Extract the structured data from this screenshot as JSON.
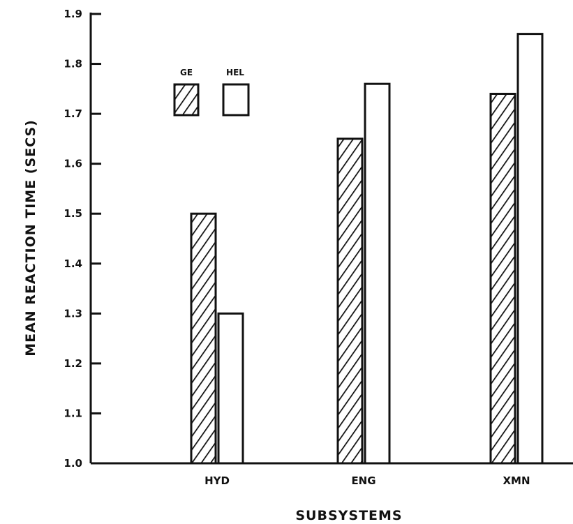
{
  "chart_data": {
    "type": "bar",
    "categories": [
      "HYD",
      "ENG",
      "XMN"
    ],
    "series": [
      {
        "name": "GE",
        "values": [
          1.5,
          1.65,
          1.74
        ],
        "pattern": "hatched"
      },
      {
        "name": "HEL",
        "values": [
          1.3,
          1.76,
          1.86
        ],
        "pattern": "open"
      }
    ],
    "xlabel": "SUBSYSTEMS",
    "ylabel": "MEAN REACTION TIME (SECS)",
    "ylim": [
      1.0,
      1.9
    ],
    "yticks": [
      "1.0",
      "1.1",
      "1.2",
      "1.3",
      "1.4",
      "1.5",
      "1.6",
      "1.7",
      "1.8",
      "1.9"
    ],
    "grid": false,
    "legend_position": "top-left",
    "colors": {
      "ink": "#111111",
      "background": "#ffffff"
    }
  }
}
